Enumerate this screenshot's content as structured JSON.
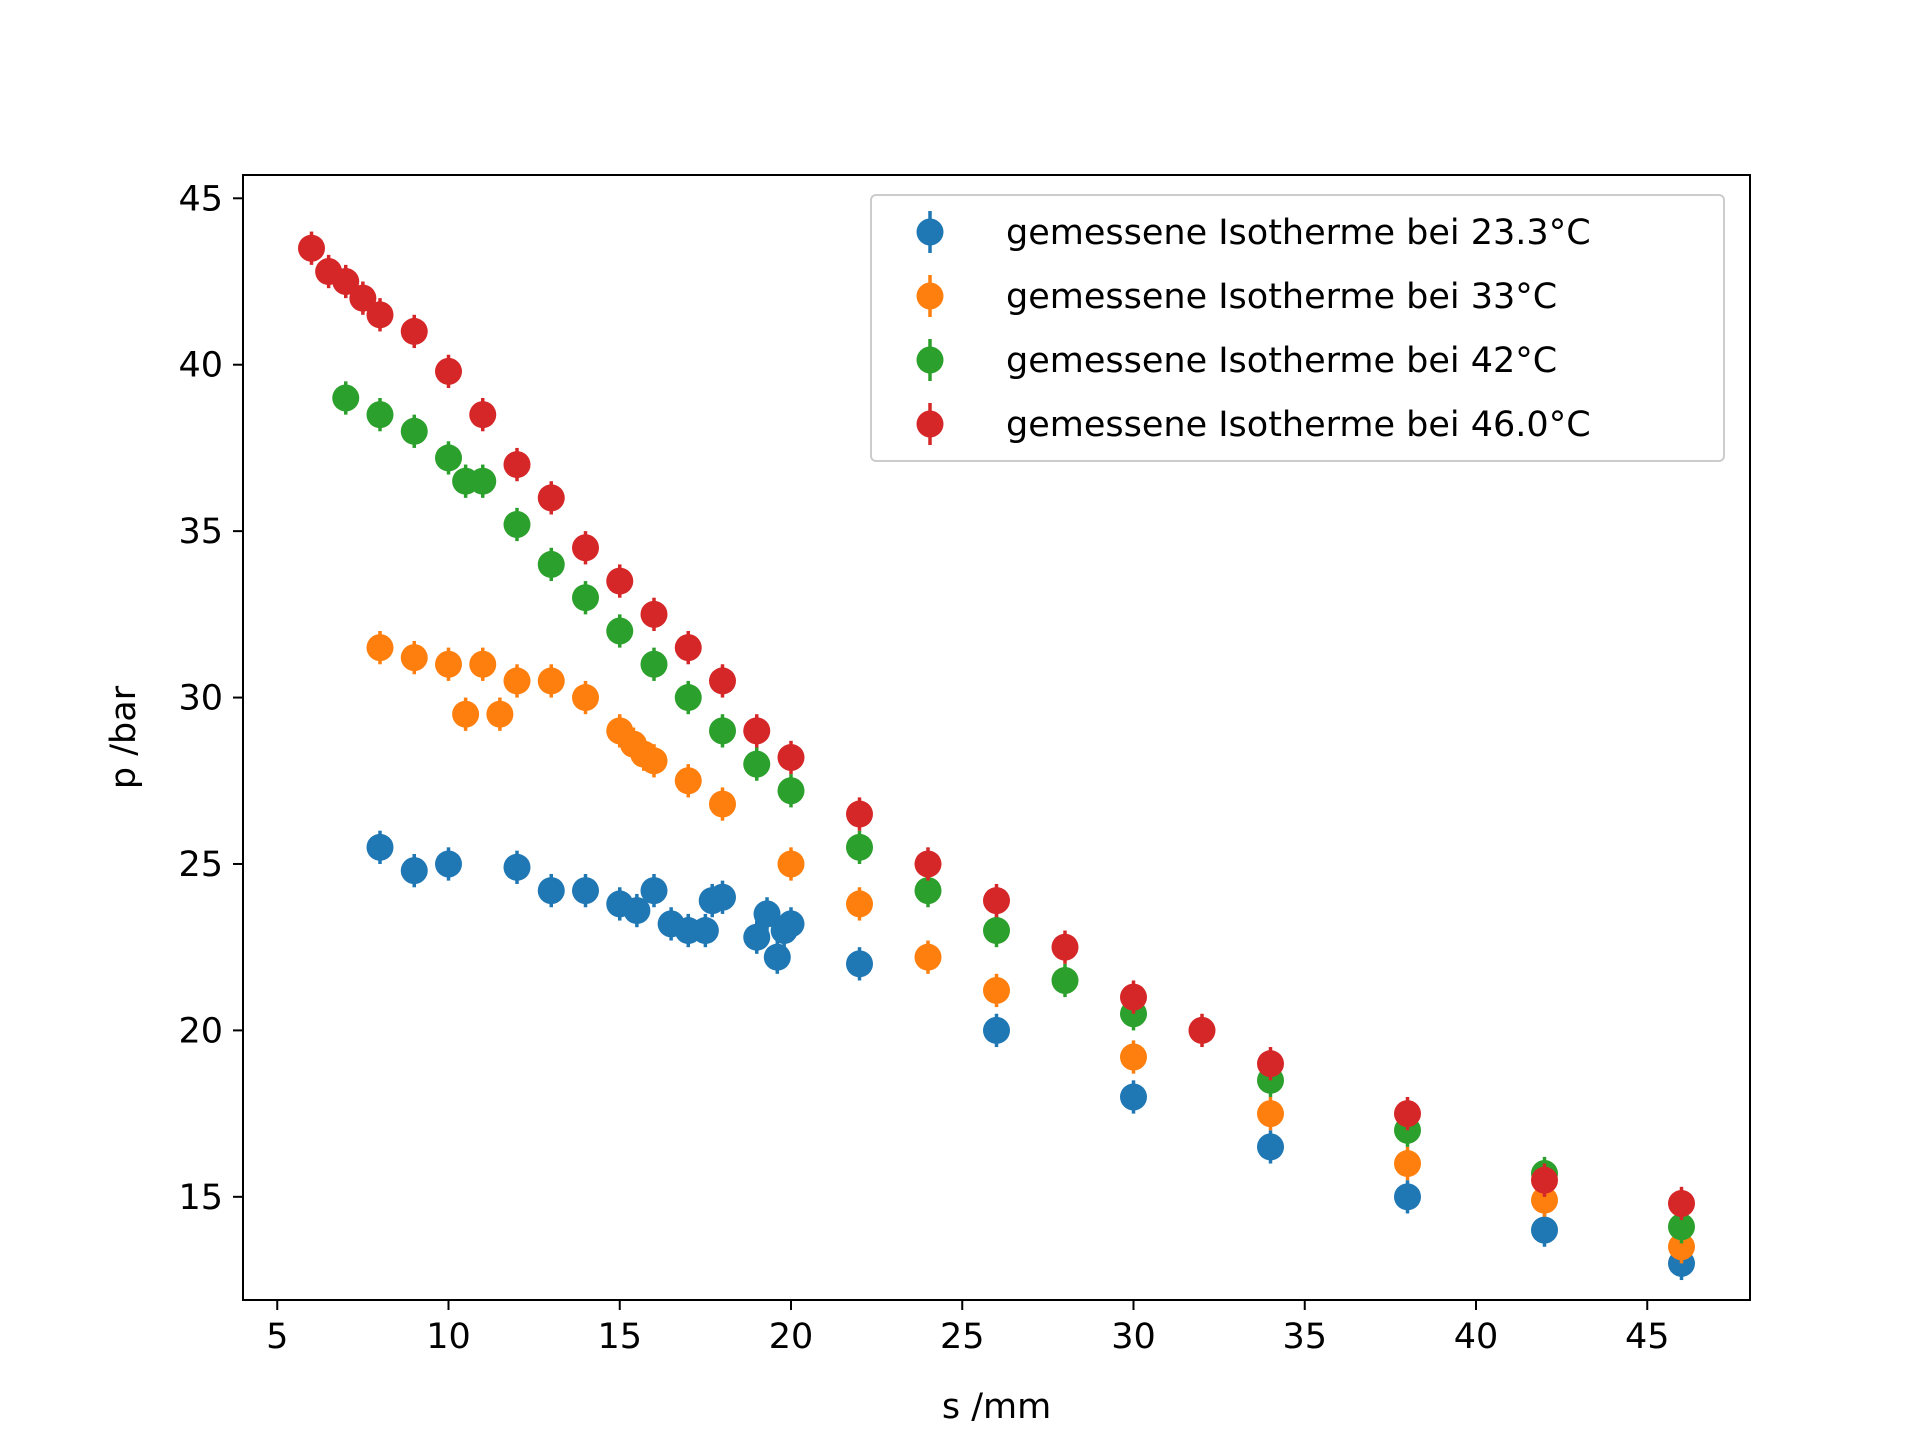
{
  "chart_data": {
    "type": "scatter",
    "title": "",
    "xlabel": "s /mm",
    "ylabel": "p /bar",
    "xlim": [
      4,
      48
    ],
    "ylim": [
      11.9,
      45.7
    ],
    "xticks": [
      5,
      10,
      15,
      20,
      25,
      30,
      35,
      40,
      45
    ],
    "yticks": [
      15,
      20,
      25,
      30,
      35,
      40,
      45
    ],
    "grid": false,
    "legend_position": "top-right",
    "error_bars": true,
    "error": 0.5,
    "series": [
      {
        "name": "gemessene Isotherme bei 23.3°C",
        "color": "#1f77b4",
        "x": [
          8,
          9,
          10,
          12,
          13,
          14,
          15,
          15.5,
          16,
          16.5,
          17,
          17.5,
          17.7,
          18,
          19,
          19.3,
          19.6,
          19.8,
          20,
          22,
          26,
          30,
          34,
          38,
          42,
          46
        ],
        "y": [
          25.5,
          24.8,
          25.0,
          24.9,
          24.2,
          24.2,
          23.8,
          23.6,
          24.2,
          23.2,
          23.0,
          23.0,
          23.9,
          24.0,
          22.8,
          23.5,
          22.2,
          23.0,
          23.2,
          22.0,
          20.0,
          18.0,
          16.5,
          15.0,
          14.0,
          13.0
        ]
      },
      {
        "name": "gemessene Isotherme bei 33°C",
        "color": "#ff7f0e",
        "x": [
          8,
          9,
          10,
          10.5,
          11,
          11.5,
          12,
          13,
          14,
          15,
          15.4,
          15.7,
          16,
          17,
          18,
          20,
          22,
          24,
          26,
          30,
          34,
          38,
          42,
          46
        ],
        "y": [
          31.5,
          31.2,
          31.0,
          29.5,
          31.0,
          29.5,
          30.5,
          30.5,
          30.0,
          29.0,
          28.6,
          28.3,
          28.1,
          27.5,
          26.8,
          25.0,
          23.8,
          22.2,
          21.2,
          19.2,
          17.5,
          16.0,
          14.9,
          13.5
        ]
      },
      {
        "name": "gemessene Isotherme bei 42°C",
        "color": "#2ca02c",
        "x": [
          7,
          8,
          9,
          10,
          10.5,
          11,
          12,
          13,
          14,
          15,
          16,
          17,
          18,
          19,
          20,
          22,
          24,
          26,
          28,
          30,
          34,
          38,
          42,
          46
        ],
        "y": [
          39.0,
          38.5,
          38.0,
          37.2,
          36.5,
          36.5,
          35.2,
          34.0,
          33.0,
          32.0,
          31.0,
          30.0,
          29.0,
          28.0,
          27.2,
          25.5,
          24.2,
          23.0,
          21.5,
          20.5,
          18.5,
          17.0,
          15.7,
          14.1
        ]
      },
      {
        "name": "gemessene Isotherme bei 46.0°C",
        "color": "#d62728",
        "x": [
          6,
          6.5,
          7,
          7.5,
          8,
          9,
          10,
          11,
          12,
          13,
          14,
          15,
          16,
          17,
          18,
          19,
          20,
          22,
          24,
          26,
          28,
          30,
          32,
          34,
          38,
          42,
          46
        ],
        "y": [
          43.5,
          42.8,
          42.5,
          42.0,
          41.5,
          41.0,
          39.8,
          38.5,
          37.0,
          36.0,
          34.5,
          33.5,
          32.5,
          31.5,
          30.5,
          29.0,
          28.2,
          26.5,
          25.0,
          23.9,
          22.5,
          21.0,
          20.0,
          19.0,
          17.5,
          15.5,
          14.8
        ]
      }
    ]
  }
}
